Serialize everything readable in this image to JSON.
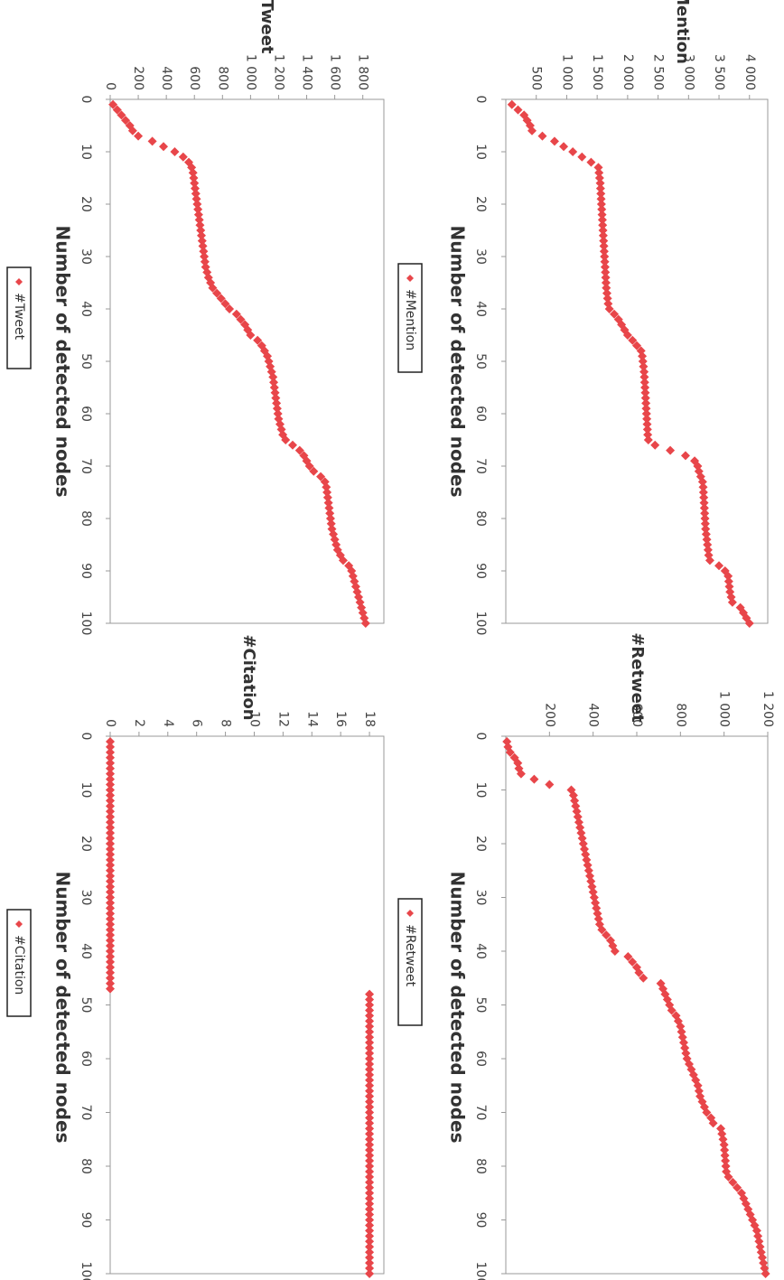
{
  "colors": {
    "marker": "#e8464a",
    "axis": "#999999"
  },
  "chart_data": [
    {
      "type": "scatter",
      "xlabel": "Number of detected nodes",
      "ylabel": "#Mention",
      "xlim": [
        0,
        100
      ],
      "ylim": [
        0,
        4300
      ],
      "xticks": [
        0,
        10,
        20,
        30,
        40,
        50,
        60,
        70,
        80,
        90,
        100
      ],
      "yticks": [
        500,
        1000,
        1500,
        2000,
        2500,
        3000,
        3500,
        4000
      ],
      "xtick_labels": [
        "0",
        "10",
        "20",
        "30",
        "40",
        "50",
        "60",
        "70",
        "80",
        "90",
        "100"
      ],
      "ytick_labels": [
        "500",
        "1 000",
        "1 500",
        "2 000",
        "2 500",
        "3 000",
        "3 500",
        "4 000"
      ],
      "legend": {
        "label": "#Mention",
        "position": "bottom-center"
      },
      "series": [
        {
          "name": "#Mention",
          "x": [
            1,
            2,
            3,
            4,
            5,
            6,
            7,
            8,
            9,
            10,
            11,
            12,
            13,
            14,
            15,
            16,
            17,
            18,
            19,
            20,
            21,
            22,
            23,
            24,
            25,
            26,
            27,
            28,
            29,
            30,
            31,
            32,
            33,
            34,
            35,
            36,
            37,
            38,
            39,
            40,
            41,
            42,
            43,
            44,
            45,
            46,
            47,
            48,
            49,
            50,
            51,
            52,
            53,
            54,
            55,
            56,
            57,
            58,
            59,
            60,
            61,
            62,
            63,
            64,
            65,
            66,
            67,
            68,
            69,
            70,
            71,
            72,
            73,
            74,
            75,
            76,
            77,
            78,
            79,
            80,
            81,
            82,
            83,
            84,
            85,
            86,
            87,
            88,
            89,
            90,
            91,
            92,
            93,
            94,
            95,
            96,
            97,
            98,
            99,
            100
          ],
          "y": [
            100,
            200,
            300,
            350,
            400,
            430,
            600,
            800,
            950,
            1100,
            1250,
            1400,
            1520,
            1530,
            1540,
            1550,
            1555,
            1560,
            1565,
            1570,
            1575,
            1580,
            1585,
            1590,
            1595,
            1600,
            1605,
            1610,
            1615,
            1620,
            1625,
            1630,
            1635,
            1640,
            1645,
            1650,
            1660,
            1670,
            1680,
            1700,
            1780,
            1850,
            1900,
            1950,
            2000,
            2080,
            2150,
            2220,
            2240,
            2250,
            2260,
            2270,
            2275,
            2280,
            2285,
            2290,
            2295,
            2300,
            2305,
            2310,
            2315,
            2320,
            2325,
            2330,
            2340,
            2450,
            2700,
            2950,
            3100,
            3150,
            3170,
            3200,
            3230,
            3240,
            3245,
            3250,
            3255,
            3260,
            3265,
            3270,
            3275,
            3280,
            3290,
            3300,
            3310,
            3320,
            3330,
            3350,
            3500,
            3600,
            3650,
            3660,
            3670,
            3680,
            3700,
            3720,
            3850,
            3900,
            3950,
            4000
          ]
        }
      ]
    },
    {
      "type": "scatter",
      "xlabel": "Number of detected nodes",
      "ylabel": "#Retweet",
      "xlim": [
        0,
        100
      ],
      "ylim": [
        0,
        1200
      ],
      "xticks": [
        0,
        10,
        20,
        30,
        40,
        50,
        60,
        70,
        80,
        90,
        100
      ],
      "yticks": [
        200,
        400,
        600,
        800,
        1000,
        1200
      ],
      "xtick_labels": [
        "0",
        "10",
        "20",
        "30",
        "40",
        "50",
        "60",
        "70",
        "80",
        "90",
        "100"
      ],
      "ytick_labels": [
        "200",
        "400",
        "600",
        "800",
        "1 000",
        "1 200"
      ],
      "legend": {
        "label": "#Retweet",
        "position": "bottom-center"
      },
      "series": [
        {
          "name": "#Retweet",
          "x": [
            1,
            2,
            3,
            4,
            5,
            6,
            7,
            8,
            9,
            10,
            11,
            12,
            13,
            14,
            15,
            16,
            17,
            18,
            19,
            20,
            21,
            22,
            23,
            24,
            25,
            26,
            27,
            28,
            29,
            30,
            31,
            32,
            33,
            34,
            35,
            36,
            37,
            38,
            39,
            40,
            41,
            42,
            43,
            44,
            45,
            46,
            47,
            48,
            49,
            50,
            51,
            52,
            53,
            54,
            55,
            56,
            57,
            58,
            59,
            60,
            61,
            62,
            63,
            64,
            65,
            66,
            67,
            68,
            69,
            70,
            71,
            72,
            73,
            74,
            75,
            76,
            77,
            78,
            79,
            80,
            81,
            82,
            83,
            84,
            85,
            86,
            87,
            88,
            89,
            90,
            91,
            92,
            93,
            94,
            95,
            96,
            97,
            98,
            99,
            100
          ],
          "y": [
            5,
            10,
            20,
            40,
            55,
            60,
            70,
            130,
            200,
            300,
            310,
            315,
            320,
            325,
            330,
            335,
            340,
            345,
            350,
            355,
            360,
            365,
            370,
            375,
            380,
            385,
            390,
            395,
            400,
            405,
            410,
            415,
            420,
            425,
            430,
            440,
            460,
            480,
            490,
            500,
            560,
            580,
            600,
            610,
            630,
            710,
            720,
            730,
            740,
            750,
            760,
            780,
            790,
            800,
            805,
            810,
            815,
            820,
            825,
            830,
            840,
            850,
            860,
            870,
            880,
            885,
            890,
            900,
            910,
            920,
            940,
            950,
            985,
            990,
            995,
            1000,
            1002,
            1004,
            1006,
            1008,
            1010,
            1020,
            1040,
            1060,
            1080,
            1090,
            1100,
            1110,
            1120,
            1130,
            1140,
            1150,
            1155,
            1160,
            1165,
            1170,
            1175,
            1180,
            1185,
            1190
          ]
        }
      ]
    },
    {
      "type": "scatter",
      "xlabel": "Number of detected nodes",
      "ylabel": "#Tweet",
      "xlim": [
        0,
        100
      ],
      "ylim": [
        0,
        1950
      ],
      "xticks": [
        0,
        10,
        20,
        30,
        40,
        50,
        60,
        70,
        80,
        90,
        100
      ],
      "yticks": [
        0,
        200,
        400,
        600,
        800,
        1000,
        1200,
        1400,
        1600,
        1800
      ],
      "xtick_labels": [
        "0",
        "10",
        "20",
        "30",
        "40",
        "50",
        "60",
        "70",
        "80",
        "90",
        "100"
      ],
      "ytick_labels": [
        "0",
        "200",
        "400",
        "600",
        "800",
        "1 000",
        "1 200",
        "1 400",
        "1 600",
        "1 800"
      ],
      "legend": {
        "label": "#Tweet",
        "position": "bottom-center"
      },
      "series": [
        {
          "name": "#Tweet",
          "x": [
            1,
            2,
            3,
            4,
            5,
            6,
            7,
            8,
            9,
            10,
            11,
            12,
            13,
            14,
            15,
            16,
            17,
            18,
            19,
            20,
            21,
            22,
            23,
            24,
            25,
            26,
            27,
            28,
            29,
            30,
            31,
            32,
            33,
            34,
            35,
            36,
            37,
            38,
            39,
            40,
            41,
            42,
            43,
            44,
            45,
            46,
            47,
            48,
            49,
            50,
            51,
            52,
            53,
            54,
            55,
            56,
            57,
            58,
            59,
            60,
            61,
            62,
            63,
            64,
            65,
            66,
            67,
            68,
            69,
            70,
            71,
            72,
            73,
            74,
            75,
            76,
            77,
            78,
            79,
            80,
            81,
            82,
            83,
            84,
            85,
            86,
            87,
            88,
            89,
            90,
            91,
            92,
            93,
            94,
            95,
            96,
            97,
            98,
            99,
            100
          ],
          "y": [
            20,
            50,
            80,
            110,
            140,
            160,
            200,
            300,
            380,
            460,
            520,
            560,
            580,
            590,
            595,
            600,
            605,
            610,
            615,
            620,
            625,
            630,
            635,
            640,
            645,
            650,
            655,
            660,
            665,
            670,
            675,
            680,
            690,
            700,
            715,
            730,
            760,
            790,
            820,
            850,
            900,
            930,
            960,
            980,
            1000,
            1050,
            1080,
            1100,
            1120,
            1130,
            1140,
            1150,
            1160,
            1165,
            1170,
            1175,
            1180,
            1185,
            1190,
            1195,
            1200,
            1210,
            1220,
            1230,
            1250,
            1300,
            1350,
            1380,
            1400,
            1420,
            1450,
            1500,
            1530,
            1540,
            1545,
            1550,
            1555,
            1560,
            1565,
            1570,
            1575,
            1580,
            1590,
            1600,
            1610,
            1620,
            1640,
            1660,
            1700,
            1720,
            1730,
            1740,
            1750,
            1760,
            1770,
            1780,
            1790,
            1800,
            1810,
            1820
          ]
        }
      ]
    },
    {
      "type": "scatter",
      "xlabel": "Number of detected nodes",
      "ylabel": "#Citation",
      "xlim": [
        0,
        100
      ],
      "ylim": [
        0,
        19
      ],
      "xticks": [
        0,
        10,
        20,
        30,
        40,
        50,
        60,
        70,
        80,
        90,
        100
      ],
      "yticks": [
        0,
        2,
        4,
        6,
        8,
        10,
        12,
        14,
        16,
        18
      ],
      "xtick_labels": [
        "0",
        "10",
        "20",
        "30",
        "40",
        "50",
        "60",
        "70",
        "80",
        "90",
        "100"
      ],
      "ytick_labels": [
        "0",
        "2",
        "4",
        "6",
        "8",
        "10",
        "12",
        "14",
        "16",
        "18"
      ],
      "legend": {
        "label": "#Citation",
        "position": "bottom-center"
      },
      "series": [
        {
          "name": "#Citation",
          "x": [
            1,
            2,
            3,
            4,
            5,
            6,
            7,
            8,
            9,
            10,
            11,
            12,
            13,
            14,
            15,
            16,
            17,
            18,
            19,
            20,
            21,
            22,
            23,
            24,
            25,
            26,
            27,
            28,
            29,
            30,
            31,
            32,
            33,
            34,
            35,
            36,
            37,
            38,
            39,
            40,
            41,
            42,
            43,
            44,
            45,
            46,
            47,
            48,
            49,
            50,
            51,
            52,
            53,
            54,
            55,
            56,
            57,
            58,
            59,
            60,
            61,
            62,
            63,
            64,
            65,
            66,
            67,
            68,
            69,
            70,
            71,
            72,
            73,
            74,
            75,
            76,
            77,
            78,
            79,
            80,
            81,
            82,
            83,
            84,
            85,
            86,
            87,
            88,
            89,
            90,
            91,
            92,
            93,
            94,
            95,
            96,
            97,
            98,
            99,
            100
          ],
          "y": [
            0,
            0,
            0,
            0,
            0,
            0,
            0,
            0,
            0,
            0,
            0,
            0,
            0,
            0,
            0,
            0,
            0,
            0,
            0,
            0,
            0,
            0,
            0,
            0,
            0,
            0,
            0,
            0,
            0,
            0,
            0,
            0,
            0,
            0,
            0,
            0,
            0,
            0,
            0,
            0,
            0,
            0,
            0,
            0,
            0,
            0,
            0,
            18,
            18,
            18,
            18,
            18,
            18,
            18,
            18,
            18,
            18,
            18,
            18,
            18,
            18,
            18,
            18,
            18,
            18,
            18,
            18,
            18,
            18,
            18,
            18,
            18,
            18,
            18,
            18,
            18,
            18,
            18,
            18,
            18,
            18,
            18,
            18,
            18,
            18,
            18,
            18,
            18,
            18,
            18,
            18,
            18,
            18,
            18,
            18,
            18,
            18,
            18,
            18,
            18
          ]
        }
      ]
    }
  ]
}
